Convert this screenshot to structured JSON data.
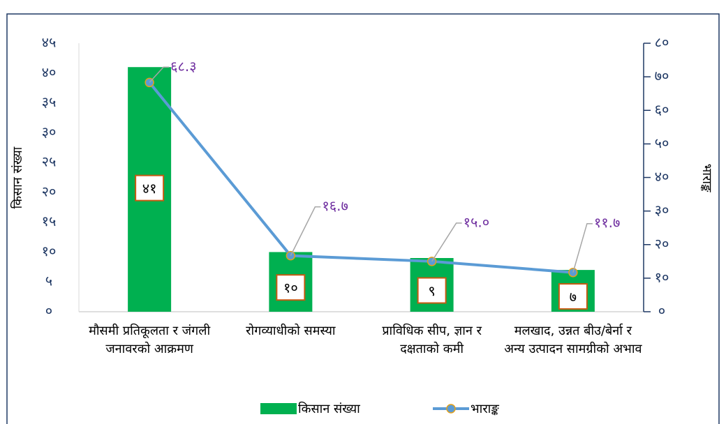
{
  "chart_data": {
    "type": "bar-line",
    "ylabel": "किसान संख्या",
    "y2label": "भाराङ्क",
    "categories": [
      "मौसमी प्रतिकूलता र जंगली जनावरको आक्रमण",
      "रोगव्याधीको समस्या",
      "प्राविधिक सीप, ज्ञान र दक्षताको कमी",
      "मलखाद, उन्नत बीउ/बेर्ना र अन्य उत्पादन सामग्रीको अभाव"
    ],
    "series": [
      {
        "name": "किसान संख्या",
        "type": "bar",
        "color": "#00b050",
        "values": [
          41,
          10,
          9,
          7
        ],
        "value_labels": [
          "४१",
          "१०",
          "९",
          "७"
        ]
      },
      {
        "name": "भाराङ्क",
        "type": "line",
        "axis": "y2",
        "color": "#5b9bd5",
        "values": [
          68.3,
          16.7,
          15.0,
          11.7
        ],
        "value_labels": [
          "६८.३",
          "१६.७",
          "१५.०",
          "११.७"
        ]
      }
    ],
    "ylim": [
      0,
      45
    ],
    "yticks": [
      {
        "value": 0,
        "label": "०"
      },
      {
        "value": 5,
        "label": "५"
      },
      {
        "value": 10,
        "label": "१०"
      },
      {
        "value": 15,
        "label": "१५"
      },
      {
        "value": 20,
        "label": "२०"
      },
      {
        "value": 25,
        "label": "२५"
      },
      {
        "value": 30,
        "label": "३०"
      },
      {
        "value": 35,
        "label": "३५"
      },
      {
        "value": 40,
        "label": "४०"
      },
      {
        "value": 45,
        "label": "४५"
      }
    ],
    "y2lim": [
      0,
      80
    ],
    "y2ticks": [
      {
        "value": 0,
        "label": "०"
      },
      {
        "value": 10,
        "label": "१०"
      },
      {
        "value": 20,
        "label": "२०"
      },
      {
        "value": 30,
        "label": "३०"
      },
      {
        "value": 40,
        "label": "४०"
      },
      {
        "value": 50,
        "label": "५०"
      },
      {
        "value": 60,
        "label": "६०"
      },
      {
        "value": 70,
        "label": "७०"
      },
      {
        "value": 80,
        "label": "८०"
      }
    ],
    "grid": false,
    "legend": "bottom"
  }
}
